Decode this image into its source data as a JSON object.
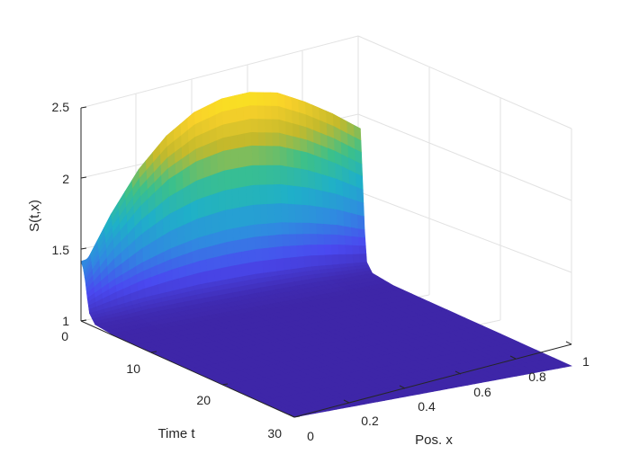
{
  "chart_data": {
    "type": "surface",
    "title": "",
    "xlabel": "Pos. x",
    "ylabel": "Time t",
    "zlabel": "S(t,x)",
    "x_ticks": [
      "0",
      "0.2",
      "0.4",
      "0.6",
      "0.8",
      "1"
    ],
    "y_ticks": [
      "0",
      "10",
      "20",
      "30"
    ],
    "z_ticks": [
      "1",
      "1.5",
      "2",
      "2.5"
    ],
    "xlim": [
      0,
      1
    ],
    "ylim": [
      0,
      30
    ],
    "zlim": [
      1,
      2.5
    ],
    "grid": true,
    "colormap": "parula",
    "colormap_colors": [
      "#3e26a8",
      "#4a49f0",
      "#2f8be0",
      "#1fb0c8",
      "#3cc08a",
      "#c4b92b",
      "#f9d12a",
      "#f9fb15"
    ],
    "x": [
      0,
      0.1,
      0.2,
      0.3,
      0.4,
      0.5,
      0.6,
      0.7,
      0.8,
      0.9,
      1
    ],
    "t": [
      0,
      0.3,
      0.6,
      0.9,
      1.2,
      2,
      5,
      10,
      20,
      30
    ],
    "S": [
      [
        1.42,
        1.45,
        1.48,
        1.5,
        1.52,
        1.54,
        1.55,
        1.55,
        1.55,
        1.55,
        1.55
      ],
      [
        1.38,
        1.72,
        2.0,
        2.2,
        2.33,
        2.39,
        2.4,
        2.36,
        2.26,
        2.14,
        2.0
      ],
      [
        1.3,
        1.55,
        1.75,
        1.9,
        1.99,
        2.03,
        2.03,
        1.99,
        1.91,
        1.8,
        1.67
      ],
      [
        1.18,
        1.28,
        1.36,
        1.42,
        1.46,
        1.48,
        1.48,
        1.46,
        1.42,
        1.37,
        1.3
      ],
      [
        1.08,
        1.1,
        1.12,
        1.13,
        1.14,
        1.14,
        1.14,
        1.13,
        1.12,
        1.1,
        1.08
      ],
      [
        1.02,
        1.02,
        1.03,
        1.03,
        1.03,
        1.03,
        1.03,
        1.03,
        1.03,
        1.02,
        1.02
      ],
      [
        1.0,
        1.0,
        1.0,
        1.0,
        1.0,
        1.0,
        1.0,
        1.0,
        1.0,
        1.0,
        1.0
      ],
      [
        1.0,
        1.0,
        1.0,
        1.0,
        1.0,
        1.0,
        1.0,
        1.0,
        1.0,
        1.0,
        1.0
      ],
      [
        1.0,
        1.0,
        1.0,
        1.0,
        1.0,
        1.0,
        1.0,
        1.0,
        1.0,
        1.0,
        1.0
      ],
      [
        1.0,
        1.0,
        1.0,
        1.0,
        1.0,
        1.0,
        1.0,
        1.0,
        1.0,
        1.0,
        1.0
      ]
    ]
  }
}
